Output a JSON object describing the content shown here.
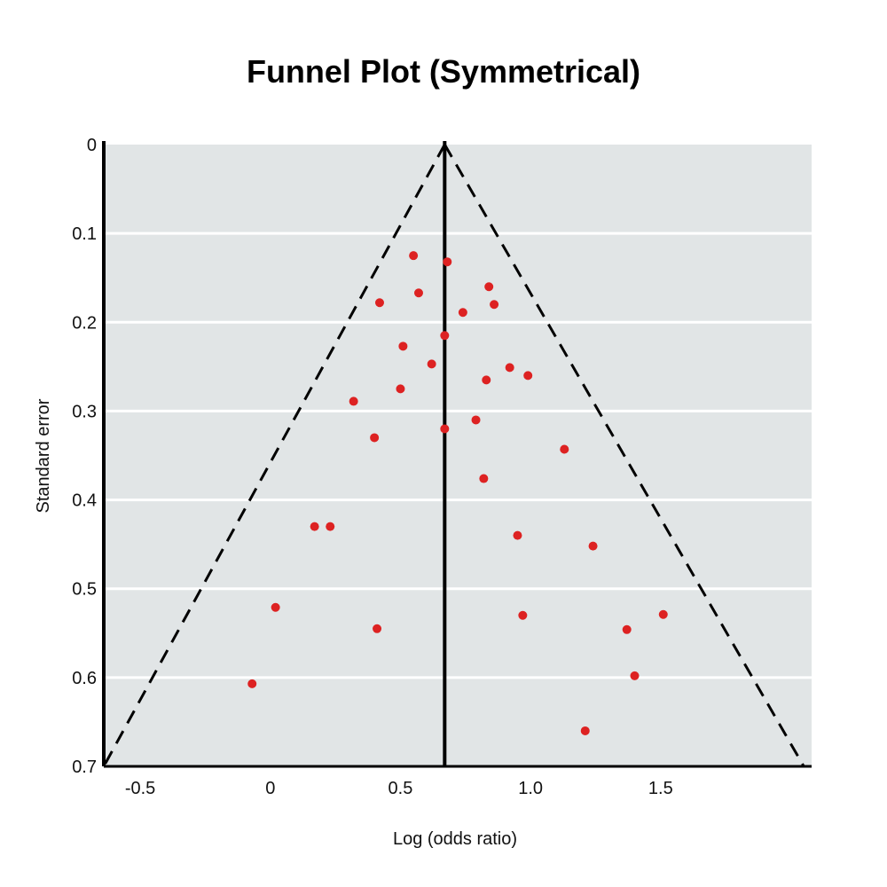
{
  "chart_data": {
    "type": "scatter",
    "title": "Funnel Plot (Symmetrical)",
    "xlabel": "Log (odds ratio)",
    "ylabel": "Standard error",
    "x_ticks": [
      {
        "value": -0.5,
        "label": "-0.5"
      },
      {
        "value": 0,
        "label": "0"
      },
      {
        "value": 0.5,
        "label": "0.5"
      },
      {
        "value": 1.0,
        "label": "1.0"
      },
      {
        "value": 1.5,
        "label": "1.5"
      }
    ],
    "y_ticks": [
      {
        "value": 0,
        "label": "0"
      },
      {
        "value": 0.1,
        "label": "0.1"
      },
      {
        "value": 0.2,
        "label": "0.2"
      },
      {
        "value": 0.3,
        "label": "0.3"
      },
      {
        "value": 0.4,
        "label": "0.4"
      },
      {
        "value": 0.5,
        "label": "0.5"
      },
      {
        "value": 0.6,
        "label": "0.6"
      },
      {
        "value": 0.7,
        "label": "0.7"
      }
    ],
    "xlim": [
      -0.64,
      2.08
    ],
    "ylim": [
      0,
      0.7
    ],
    "y_inverted": true,
    "grid": "horizontal",
    "center_line_x": 0.67,
    "funnel": {
      "apex": [
        0.67,
        0
      ],
      "base_left": [
        -0.64,
        0.7
      ],
      "base_right": [
        2.05,
        0.7
      ]
    },
    "colors": {
      "points": "#dd2222",
      "background": "#e1e5e6",
      "grid": "#ffffff",
      "lines": "#000000"
    },
    "points": [
      {
        "x": 0.55,
        "y": 0.125
      },
      {
        "x": 0.68,
        "y": 0.132
      },
      {
        "x": 0.57,
        "y": 0.167
      },
      {
        "x": 0.84,
        "y": 0.16
      },
      {
        "x": 0.42,
        "y": 0.178
      },
      {
        "x": 0.74,
        "y": 0.189
      },
      {
        "x": 0.86,
        "y": 0.18
      },
      {
        "x": 0.67,
        "y": 0.215
      },
      {
        "x": 0.51,
        "y": 0.227
      },
      {
        "x": 0.62,
        "y": 0.247
      },
      {
        "x": 0.92,
        "y": 0.251
      },
      {
        "x": 0.83,
        "y": 0.265
      },
      {
        "x": 0.99,
        "y": 0.26
      },
      {
        "x": 0.5,
        "y": 0.275
      },
      {
        "x": 0.32,
        "y": 0.289
      },
      {
        "x": 0.79,
        "y": 0.31
      },
      {
        "x": 0.67,
        "y": 0.32
      },
      {
        "x": 0.4,
        "y": 0.33
      },
      {
        "x": 1.13,
        "y": 0.343
      },
      {
        "x": 0.82,
        "y": 0.376
      },
      {
        "x": 0.17,
        "y": 0.43
      },
      {
        "x": 0.23,
        "y": 0.43
      },
      {
        "x": 0.95,
        "y": 0.44
      },
      {
        "x": 1.24,
        "y": 0.452
      },
      {
        "x": 0.02,
        "y": 0.521
      },
      {
        "x": 0.97,
        "y": 0.53
      },
      {
        "x": 1.51,
        "y": 0.529
      },
      {
        "x": 0.41,
        "y": 0.545
      },
      {
        "x": 1.37,
        "y": 0.546
      },
      {
        "x": -0.07,
        "y": 0.607
      },
      {
        "x": 1.4,
        "y": 0.598
      },
      {
        "x": 1.21,
        "y": 0.66
      }
    ]
  }
}
